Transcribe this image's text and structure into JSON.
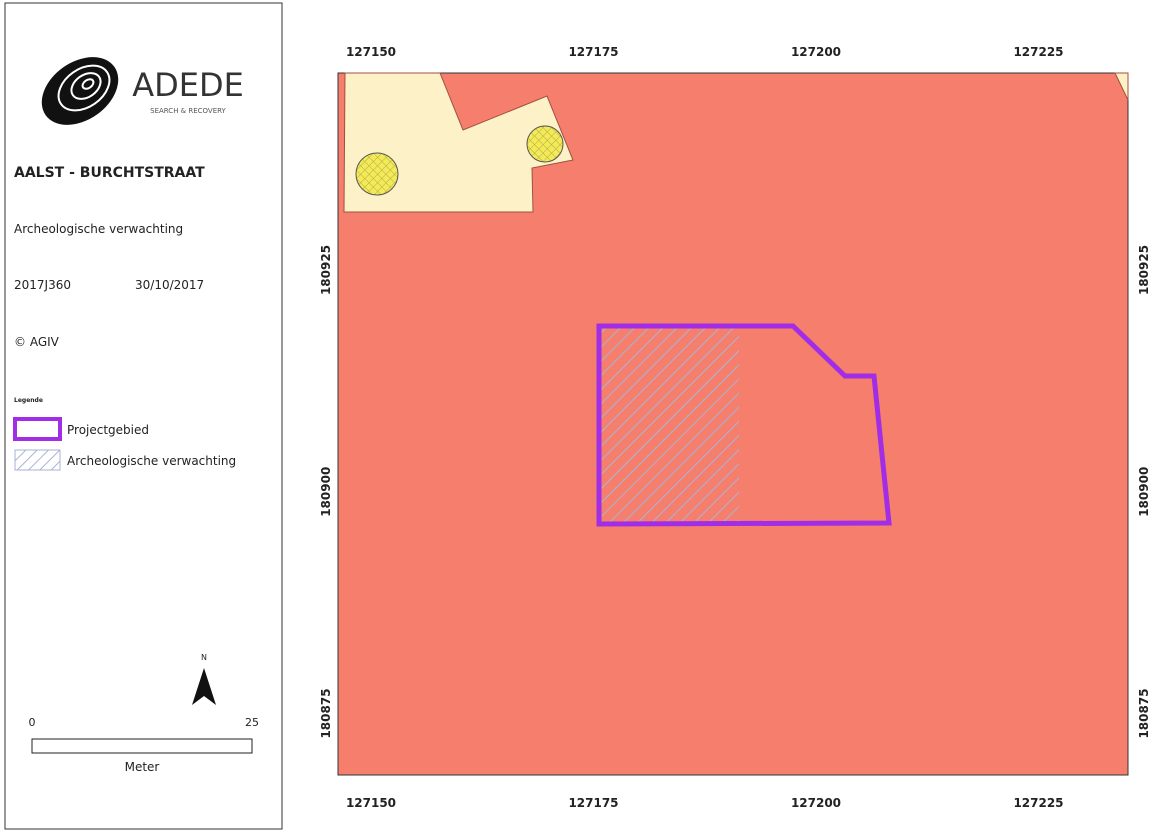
{
  "logo": {
    "name": "ADEDE",
    "tagline": "SEARCH & RECOVERY"
  },
  "info": {
    "title": "AALST - BURCHTSTRAAT",
    "subtitle": "Archeologische verwachting",
    "code": "2017J360",
    "date": "30/10/2017",
    "copyright": "© AGIV"
  },
  "legend": {
    "title": "Legende",
    "items": [
      "Projectgebied",
      "Archeologische verwachting"
    ]
  },
  "north": "N",
  "scale": {
    "start": "0",
    "end": "25",
    "unit": "Meter"
  },
  "map": {
    "x_ticks": [
      127150,
      127175,
      127200,
      127225
    ],
    "y_ticks": [
      180925,
      180900,
      180875
    ]
  }
}
